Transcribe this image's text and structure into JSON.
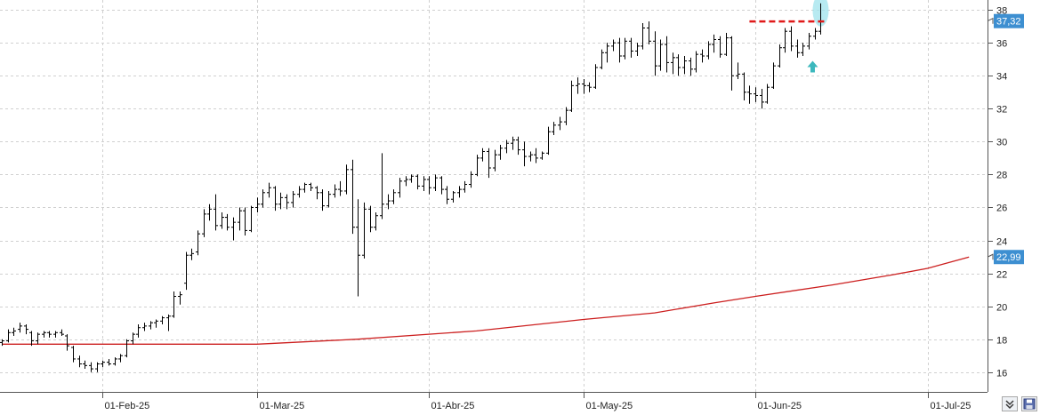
{
  "chart_data": {
    "type": "ohlc",
    "grid": true,
    "ylim": [
      14.8,
      38.6
    ],
    "y_ticks": [
      "16",
      "18",
      "20",
      "22",
      "24",
      "26",
      "28",
      "30",
      "32",
      "34",
      "36",
      "38"
    ],
    "x_labels": [
      {
        "label": "01-Feb-25",
        "index": 17
      },
      {
        "label": "01-Mar-25",
        "index": 43
      },
      {
        "label": "01-Abr-25",
        "index": 72
      },
      {
        "label": "01-May-25",
        "index": 98
      },
      {
        "label": "01-Jun-25",
        "index": 127
      },
      {
        "label": "01-Jul-25",
        "index": 156
      }
    ],
    "last_price_label": "37,32",
    "ma_label": "22,99",
    "resistance_level": 37.3,
    "colors": {
      "price": "#000000",
      "moving_average": "#cc1f1f",
      "resistance": "#e01a1a",
      "label_bg": "#3d8fd1",
      "highlight": "#9fe3ec",
      "arrow": "#3cb8bd"
    },
    "ma": [
      [
        0,
        17.7
      ],
      [
        17,
        17.7
      ],
      [
        43,
        17.7
      ],
      [
        60,
        18.0
      ],
      [
        80,
        18.5
      ],
      [
        98,
        19.2
      ],
      [
        110,
        19.6
      ],
      [
        120,
        20.2
      ],
      [
        127,
        20.6
      ],
      [
        140,
        21.3
      ],
      [
        150,
        21.9
      ],
      [
        156,
        22.3
      ],
      [
        163,
        22.99
      ]
    ],
    "ohlc": [
      [
        17.8,
        18.0,
        17.6,
        17.9
      ],
      [
        17.9,
        18.6,
        17.8,
        18.4
      ],
      [
        18.4,
        18.7,
        18.2,
        18.5
      ],
      [
        18.6,
        19.0,
        18.4,
        18.8
      ],
      [
        18.8,
        18.9,
        18.3,
        18.6
      ],
      [
        18.4,
        18.5,
        17.6,
        17.9
      ],
      [
        17.9,
        18.4,
        17.7,
        18.3
      ],
      [
        18.3,
        18.5,
        18.1,
        18.4
      ],
      [
        18.4,
        18.5,
        18.1,
        18.3
      ],
      [
        18.3,
        18.5,
        18.1,
        18.4
      ],
      [
        18.4,
        18.6,
        18.2,
        18.3
      ],
      [
        18.2,
        18.3,
        17.3,
        17.6
      ],
      [
        17.5,
        17.6,
        16.6,
        16.8
      ],
      [
        16.8,
        17.0,
        16.3,
        16.5
      ],
      [
        16.5,
        16.7,
        16.2,
        16.4
      ],
      [
        16.4,
        16.6,
        16.0,
        16.2
      ],
      [
        16.2,
        16.6,
        16.0,
        16.5
      ],
      [
        16.5,
        16.7,
        16.3,
        16.6
      ],
      [
        16.6,
        16.8,
        16.4,
        16.5
      ],
      [
        16.5,
        16.9,
        16.4,
        16.8
      ],
      [
        16.8,
        17.1,
        16.6,
        17.0
      ],
      [
        17.0,
        18.0,
        16.9,
        17.9
      ],
      [
        17.9,
        18.4,
        17.7,
        18.3
      ],
      [
        18.3,
        18.9,
        18.1,
        18.7
      ],
      [
        18.7,
        19.0,
        18.5,
        18.8
      ],
      [
        18.8,
        19.1,
        18.6,
        19.0
      ],
      [
        19.0,
        19.2,
        18.7,
        19.1
      ],
      [
        19.1,
        19.4,
        18.9,
        19.3
      ],
      [
        19.3,
        19.5,
        18.5,
        19.4
      ],
      [
        19.4,
        20.9,
        19.3,
        20.6
      ],
      [
        20.6,
        20.9,
        20.1,
        20.7
      ],
      [
        21.4,
        23.3,
        21.0,
        23.1
      ],
      [
        23.1,
        23.5,
        22.8,
        23.2
      ],
      [
        23.3,
        24.6,
        23.1,
        24.4
      ],
      [
        24.4,
        25.9,
        24.2,
        25.6
      ],
      [
        25.6,
        26.2,
        25.2,
        25.9
      ],
      [
        25.9,
        26.8,
        24.6,
        24.9
      ],
      [
        24.9,
        25.7,
        24.7,
        25.4
      ],
      [
        25.4,
        25.6,
        24.6,
        24.8
      ],
      [
        24.8,
        25.4,
        24.0,
        25.1
      ],
      [
        25.1,
        26.0,
        24.6,
        25.8
      ],
      [
        25.8,
        26.0,
        24.3,
        24.6
      ],
      [
        24.6,
        26.1,
        24.5,
        26.0
      ],
      [
        26.0,
        26.6,
        25.7,
        26.2
      ],
      [
        26.2,
        27.1,
        26.0,
        26.9
      ],
      [
        26.9,
        27.5,
        26.6,
        27.2
      ],
      [
        27.2,
        27.3,
        25.8,
        26.2
      ],
      [
        26.2,
        26.9,
        25.9,
        26.6
      ],
      [
        26.6,
        26.8,
        25.9,
        26.3
      ],
      [
        26.3,
        27.0,
        26.0,
        26.8
      ],
      [
        26.8,
        27.3,
        26.6,
        27.1
      ],
      [
        27.1,
        27.5,
        26.9,
        27.4
      ],
      [
        27.4,
        27.5,
        27.0,
        27.2
      ],
      [
        27.2,
        27.3,
        26.5,
        26.9
      ],
      [
        26.9,
        27.1,
        25.8,
        26.1
      ],
      [
        26.1,
        27.0,
        26.0,
        26.8
      ],
      [
        26.8,
        27.4,
        26.6,
        27.1
      ],
      [
        27.1,
        27.6,
        26.7,
        27.0
      ],
      [
        27.0,
        28.6,
        26.8,
        28.3
      ],
      [
        28.3,
        28.9,
        24.4,
        24.8
      ],
      [
        24.8,
        26.5,
        20.6,
        23.1
      ],
      [
        23.1,
        26.3,
        22.9,
        25.9
      ],
      [
        25.9,
        26.1,
        24.5,
        24.8
      ],
      [
        24.8,
        25.7,
        24.6,
        25.5
      ],
      [
        25.5,
        29.3,
        25.3,
        26.2
      ],
      [
        26.2,
        26.8,
        25.9,
        26.4
      ],
      [
        26.4,
        27.1,
        26.2,
        26.9
      ],
      [
        26.9,
        27.8,
        26.6,
        27.6
      ],
      [
        27.6,
        27.9,
        27.3,
        27.7
      ],
      [
        27.7,
        28.0,
        27.5,
        27.9
      ],
      [
        27.9,
        28.0,
        27.1,
        27.3
      ],
      [
        27.3,
        27.9,
        27.0,
        27.7
      ],
      [
        27.7,
        27.9,
        26.8,
        27.2
      ],
      [
        27.2,
        28.0,
        27.0,
        27.8
      ],
      [
        27.8,
        27.9,
        26.8,
        27.1
      ],
      [
        27.1,
        27.3,
        26.2,
        26.5
      ],
      [
        26.5,
        27.0,
        26.3,
        26.9
      ],
      [
        26.9,
        27.3,
        26.6,
        27.1
      ],
      [
        27.1,
        27.6,
        26.9,
        27.4
      ],
      [
        27.4,
        28.2,
        27.2,
        28.0
      ],
      [
        28.0,
        29.2,
        27.9,
        29.0
      ],
      [
        29.0,
        29.6,
        28.8,
        29.4
      ],
      [
        29.4,
        29.6,
        27.8,
        28.4
      ],
      [
        28.4,
        29.5,
        28.2,
        29.2
      ],
      [
        29.2,
        29.8,
        28.9,
        29.6
      ],
      [
        29.6,
        30.1,
        29.3,
        29.9
      ],
      [
        29.9,
        30.3,
        29.5,
        30.1
      ],
      [
        30.1,
        30.3,
        29.2,
        29.5
      ],
      [
        29.5,
        30.0,
        28.5,
        29.1
      ],
      [
        29.1,
        29.4,
        28.8,
        29.2
      ],
      [
        29.2,
        29.6,
        28.7,
        29.0
      ],
      [
        29.0,
        29.4,
        28.9,
        29.3
      ],
      [
        29.3,
        30.9,
        29.2,
        30.6
      ],
      [
        30.6,
        31.2,
        30.4,
        31.0
      ],
      [
        31.0,
        31.5,
        30.7,
        31.2
      ],
      [
        31.2,
        32.1,
        31.0,
        31.9
      ],
      [
        31.9,
        33.7,
        31.8,
        33.4
      ],
      [
        33.4,
        33.9,
        32.9,
        33.5
      ],
      [
        33.5,
        33.8,
        32.9,
        33.4
      ],
      [
        33.4,
        33.6,
        33.0,
        33.3
      ],
      [
        33.3,
        34.7,
        33.2,
        34.5
      ],
      [
        34.5,
        35.6,
        34.4,
        35.4
      ],
      [
        35.4,
        36.0,
        34.8,
        35.8
      ],
      [
        35.8,
        36.2,
        35.5,
        36.0
      ],
      [
        36.0,
        36.3,
        34.8,
        35.2
      ],
      [
        35.2,
        36.3,
        35.0,
        36.1
      ],
      [
        36.1,
        36.3,
        35.1,
        35.5
      ],
      [
        35.5,
        36.0,
        35.2,
        35.8
      ],
      [
        35.8,
        37.2,
        35.6,
        36.9
      ],
      [
        36.9,
        37.3,
        35.9,
        36.1
      ],
      [
        36.1,
        36.7,
        34.0,
        34.6
      ],
      [
        34.6,
        36.2,
        34.3,
        35.9
      ],
      [
        35.9,
        36.4,
        34.2,
        34.8
      ],
      [
        34.8,
        35.4,
        34.1,
        35.1
      ],
      [
        35.1,
        35.3,
        34.0,
        34.5
      ],
      [
        34.5,
        35.2,
        34.1,
        34.9
      ],
      [
        34.9,
        35.1,
        34.0,
        34.4
      ],
      [
        34.4,
        35.5,
        34.2,
        35.3
      ],
      [
        35.3,
        35.6,
        34.8,
        35.2
      ],
      [
        35.2,
        36.1,
        35.0,
        35.9
      ],
      [
        35.9,
        36.5,
        35.4,
        36.2
      ],
      [
        36.2,
        36.4,
        35.1,
        35.3
      ],
      [
        35.3,
        36.6,
        35.2,
        36.3
      ],
      [
        36.3,
        36.4,
        33.1,
        34.0
      ],
      [
        34.0,
        34.8,
        33.8,
        34.1
      ],
      [
        34.1,
        34.2,
        32.5,
        33.0
      ],
      [
        33.0,
        33.4,
        32.3,
        32.9
      ],
      [
        32.9,
        33.3,
        32.4,
        32.8
      ],
      [
        32.8,
        33.2,
        32.0,
        32.4
      ],
      [
        32.4,
        33.5,
        32.3,
        33.3
      ],
      [
        33.3,
        34.8,
        33.2,
        34.6
      ],
      [
        34.6,
        35.9,
        34.5,
        35.7
      ],
      [
        35.7,
        36.9,
        35.4,
        36.7
      ],
      [
        36.7,
        37.0,
        35.5,
        35.8
      ],
      [
        35.8,
        36.2,
        35.1,
        35.4
      ],
      [
        35.4,
        36.0,
        35.2,
        35.8
      ],
      [
        35.8,
        36.6,
        35.6,
        36.4
      ],
      [
        36.4,
        36.9,
        36.2,
        36.7
      ],
      [
        36.7,
        38.4,
        36.5,
        37.32
      ]
    ]
  }
}
